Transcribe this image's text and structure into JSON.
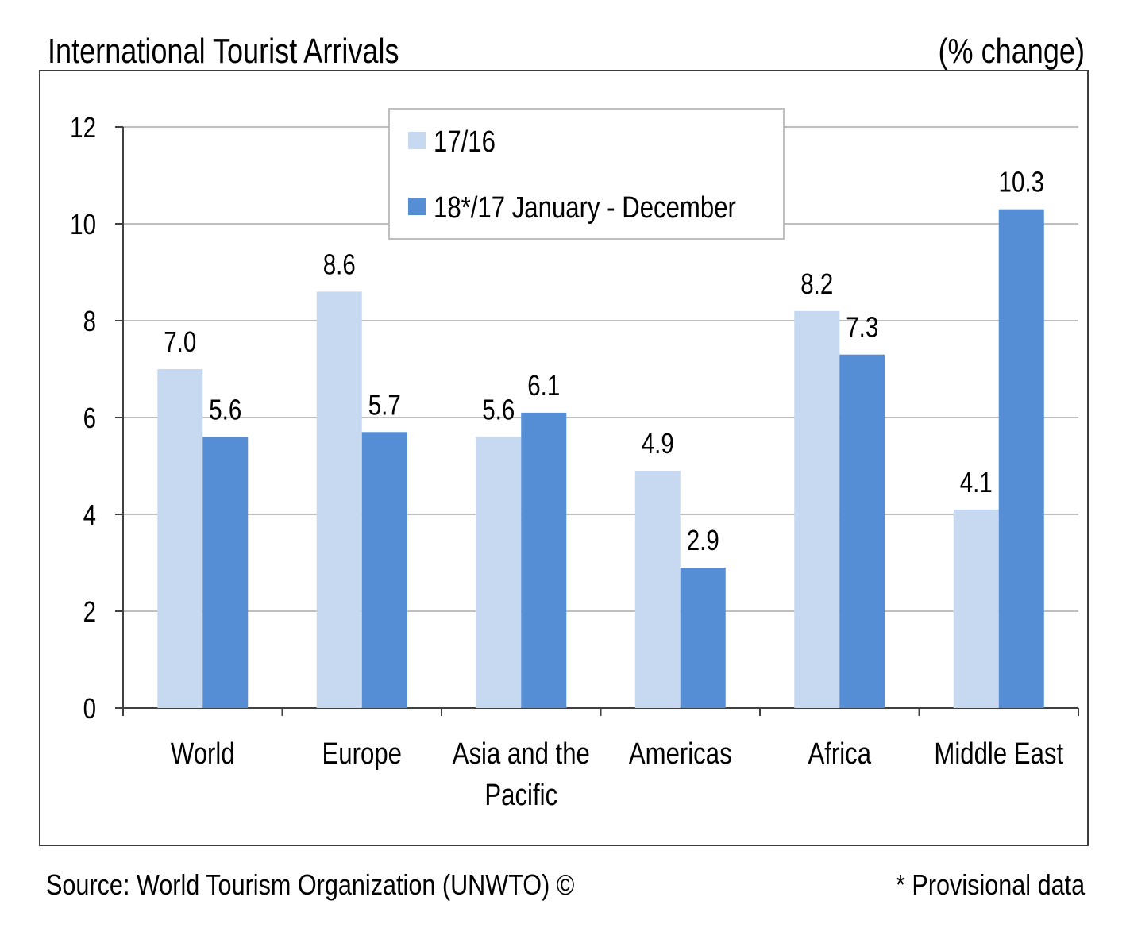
{
  "header": {
    "title": "International Tourist Arrivals",
    "unit": "(% change)"
  },
  "footer": {
    "source": "Source: World Tourism Organization (UNWTO) ©",
    "note": "* Provisional data"
  },
  "chart_data": {
    "type": "bar",
    "categories": [
      "World",
      "Europe",
      "Asia and the Pacific",
      "Americas",
      "Africa",
      "Middle East"
    ],
    "category_lines": [
      [
        "World"
      ],
      [
        "Europe"
      ],
      [
        "Asia and the",
        "Pacific"
      ],
      [
        "Americas"
      ],
      [
        "Africa"
      ],
      [
        "Middle East"
      ]
    ],
    "series": [
      {
        "name": "17/16",
        "values": [
          7.0,
          8.6,
          5.6,
          4.9,
          8.2,
          4.1
        ],
        "labels": [
          "7.0",
          "8.6",
          "5.6",
          "4.9",
          "8.2",
          "4.1"
        ],
        "color": "#c6d9f0"
      },
      {
        "name": "18*/17 January - December",
        "values": [
          5.6,
          5.7,
          6.1,
          2.9,
          7.3,
          10.3
        ],
        "labels": [
          "5.6",
          "5.7",
          "6.1",
          "2.9",
          "7.3",
          "10.3"
        ],
        "color": "#558ed5"
      }
    ],
    "ylim": [
      0,
      12
    ],
    "yticks": [
      0,
      2,
      4,
      6,
      8,
      10,
      12
    ],
    "grid": true,
    "gridColor": "#bfbfbf",
    "legend": "top-center"
  }
}
